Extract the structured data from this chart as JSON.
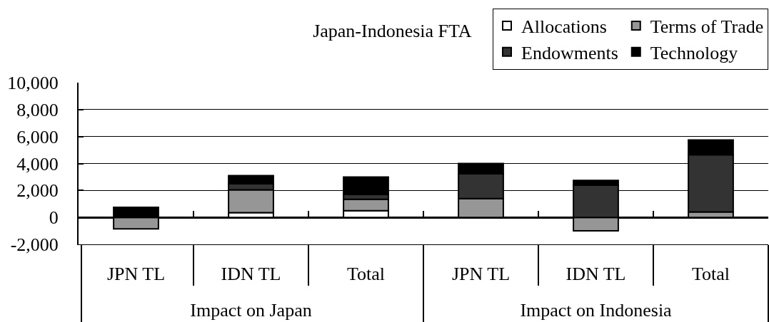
{
  "chart_data": {
    "type": "bar",
    "title": "Japan-Indonesia FTA",
    "categories": [
      "JPN TL",
      "IDN TL",
      "Total",
      "JPN TL",
      "IDN TL",
      "Total"
    ],
    "annotations": [
      "Impact on Japan",
      "Impact on Indonesia"
    ],
    "stacked": true,
    "series": [
      {
        "name": "Allocations",
        "color": "#ffffff",
        "values": [
          null,
          350,
          500,
          null,
          null,
          null
        ]
      },
      {
        "name": "Terms of Trade",
        "color": "#969696",
        "values": [
          -850,
          1700,
          850,
          1400,
          -1000,
          400
        ]
      },
      {
        "name": "Endowments",
        "color": "#333333",
        "values": [
          null,
          450,
          350,
          1850,
          2400,
          4250
        ]
      },
      {
        "name": "Technology",
        "color": "#000000",
        "values": [
          750,
          600,
          1300,
          750,
          350,
          1100
        ]
      }
    ],
    "ylim": [
      -2000,
      10000
    ],
    "yticks": [
      {
        "value": -2000,
        "label": "-2,000"
      },
      0,
      {
        "value": 2000,
        "label": "2,000"
      },
      {
        "value": 4000,
        "label": "4,000"
      },
      {
        "value": 6000,
        "label": "6,000"
      },
      {
        "value": 8000,
        "label": "8,000"
      },
      {
        "value": 10000,
        "label": "10,000"
      }
    ],
    "grid": "y",
    "legend": "top right"
  }
}
